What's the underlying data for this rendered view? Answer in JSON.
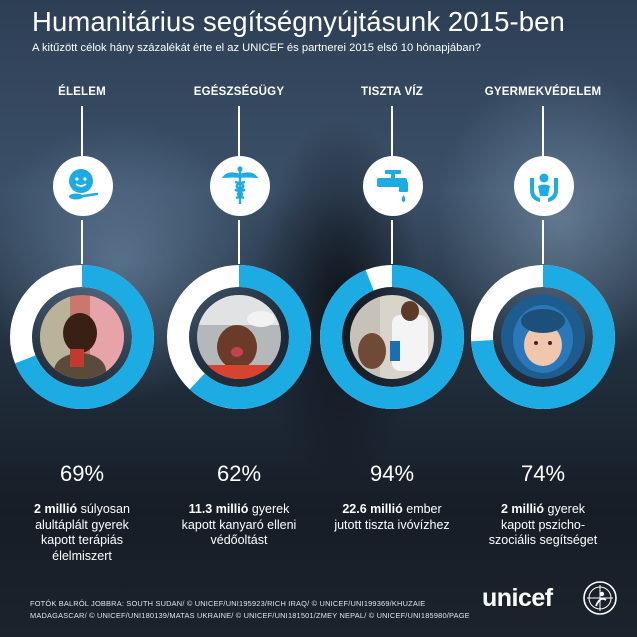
{
  "header": {
    "title": "Humanitárius segítségnyújtásunk 2015-ben",
    "subtitle": "A kitűzött célok hány százalékát érte el az UNICEF és partnerei 2015 első 10 hónapjában?"
  },
  "colors": {
    "accent": "#1cabe2",
    "ring_bg": "#ffffff",
    "text": "#ffffff"
  },
  "chart_data": {
    "type": "pie",
    "categories": [
      "ÉLELEM",
      "EGÉSZSÉGÜGY",
      "TISZTA VÍZ",
      "GYERMEKVÉDELEM"
    ],
    "values": [
      69,
      62,
      94,
      74
    ],
    "unit": "%",
    "title": "Humanitárius segítségnyújtásunk 2015-ben"
  },
  "columns": [
    {
      "heading": "ÉLELEM",
      "icon": "baby-spoon-icon",
      "percent_label": "69%",
      "value": 69,
      "bold": "2 millió",
      "line1_rest": " súlyosan",
      "line2": "alultáplált gyerek",
      "line3": "kapott terápiás",
      "line4": "élelmiszert"
    },
    {
      "heading": "EGÉSZSÉGÜGY",
      "icon": "caduceus-icon",
      "percent_label": "62%",
      "value": 62,
      "bold": "11.3 millió",
      "line1_rest": " gyerek",
      "line2": "kapott kanyaró elleni",
      "line3": "védőoltást",
      "line4": ""
    },
    {
      "heading": "TISZTA VÍZ",
      "icon": "water-tap-icon",
      "percent_label": "94%",
      "value": 94,
      "bold": "22.6 millió",
      "line1_rest": " ember",
      "line2": "jutott tiszta ivóvízhez",
      "line3": "",
      "line4": ""
    },
    {
      "heading": "GYERMEKVÉDELEM",
      "icon": "child-protection-icon",
      "percent_label": "74%",
      "value": 74,
      "bold": "2 millió",
      "line1_rest": " gyerek",
      "line2": "kapott pszicho-",
      "line3": "szociális segítséget",
      "line4": ""
    }
  ],
  "footer": {
    "credits_line1": "FOTÓK BALRÓL JOBBRA: SOUTH SUDAN/ © UNICEF/UNI195923/RICH  IRAQ/ © UNICEF/UNI199369/KHUZAIE",
    "credits_line2": "MADAGASCAR/ © UNICEF/UNI180139/MATAS   UKRAINE/ © UNICEF/UNI181501/ZMEY  NEPAL/ © UNICEF/UNI185980/PAGE",
    "logo_text": "unicef"
  }
}
